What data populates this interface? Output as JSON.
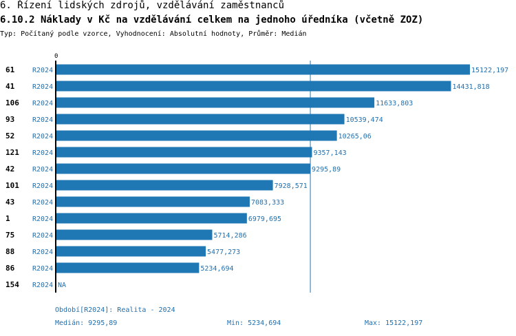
{
  "header": {
    "title_section": "6. Řízení lidských zdrojů, vzdělávání zaměstnanců",
    "title_indicator": "6.10.2 Náklady v Kč na vzdělávání celkem na jednoho úředníka (včetně ZOZ)",
    "subtitle": "Typ: Počítaný podle vzorce, Vyhodnocení: Absolutní hodnoty, Průměr: Medián"
  },
  "chart_data": {
    "type": "bar",
    "orientation": "horizontal",
    "title": "6.10.2 Náklady v Kč na vzdělávání celkem na jednoho úředníka (včetně ZOZ)",
    "x_axis_origin_label": "0",
    "xlim": [
      0,
      15122.197
    ],
    "median_line": 9295.89,
    "bar_color": "#1f77b4",
    "label_color": "#1f6fae",
    "rows": [
      {
        "id": "61",
        "period": "R2024",
        "value": 15122.197,
        "label": "15122,197"
      },
      {
        "id": "41",
        "period": "R2024",
        "value": 14431.818,
        "label": "14431,818"
      },
      {
        "id": "106",
        "period": "R2024",
        "value": 11633.803,
        "label": "11633,803"
      },
      {
        "id": "93",
        "period": "R2024",
        "value": 10539.474,
        "label": "10539,474"
      },
      {
        "id": "52",
        "period": "R2024",
        "value": 10265.06,
        "label": "10265,06"
      },
      {
        "id": "121",
        "period": "R2024",
        "value": 9357.143,
        "label": "9357,143"
      },
      {
        "id": "42",
        "period": "R2024",
        "value": 9295.89,
        "label": "9295,89"
      },
      {
        "id": "101",
        "period": "R2024",
        "value": 7928.571,
        "label": "7928,571"
      },
      {
        "id": "43",
        "period": "R2024",
        "value": 7083.333,
        "label": "7083,333"
      },
      {
        "id": "1",
        "period": "R2024",
        "value": 6979.695,
        "label": "6979,695"
      },
      {
        "id": "75",
        "period": "R2024",
        "value": 5714.286,
        "label": "5714,286"
      },
      {
        "id": "88",
        "period": "R2024",
        "value": 5477.273,
        "label": "5477,273"
      },
      {
        "id": "86",
        "period": "R2024",
        "value": 5234.694,
        "label": "5234,694"
      },
      {
        "id": "154",
        "period": "R2024",
        "value": null,
        "label": "NA"
      }
    ]
  },
  "footer": {
    "period_legend": "Období[R2024]: Realita - 2024",
    "median": "Medián: 9295,89",
    "min": "Min: 5234,694",
    "max": "Max: 15122,197"
  }
}
